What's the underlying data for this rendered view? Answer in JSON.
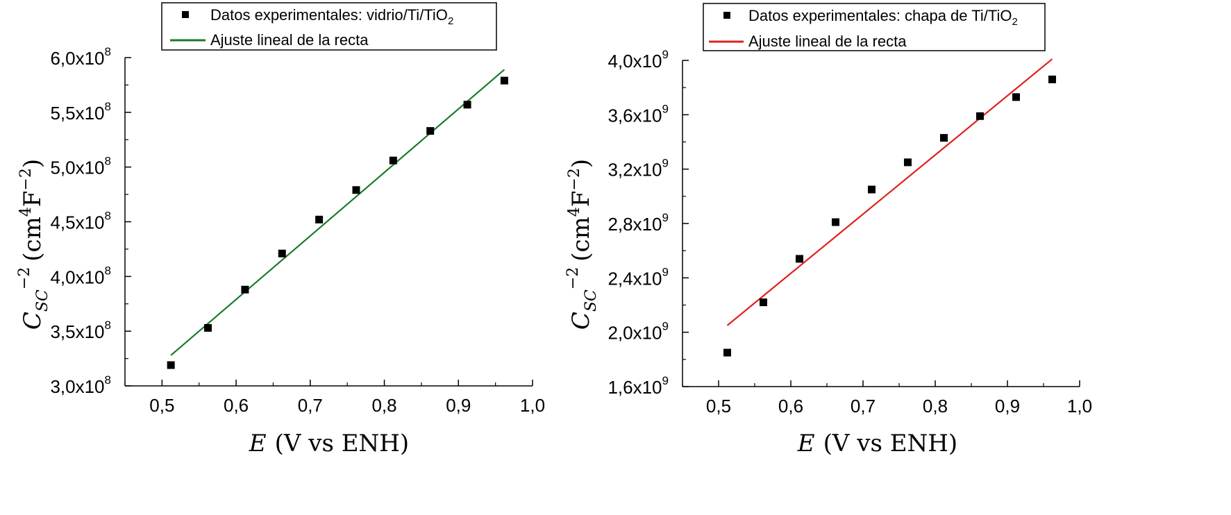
{
  "chart_data": [
    {
      "type": "scatter",
      "title": "",
      "xlabel": "E (V vs ENH)",
      "ylabel": "C_SC^−2 (cm^4F^−2)",
      "xlim": [
        0.45,
        1.0
      ],
      "ylim": [
        300000000,
        600000000
      ],
      "x_ticks": [
        0.5,
        0.6,
        0.7,
        0.8,
        0.9,
        1.0
      ],
      "x_tick_labels": [
        "0,5",
        "0,6",
        "0,7",
        "0,8",
        "0,9",
        "1,0"
      ],
      "y_ticks": [
        300000000,
        350000000,
        400000000,
        450000000,
        500000000,
        550000000,
        600000000
      ],
      "y_tick_labels": [
        {
          "mantissa": "3,0x10",
          "exp": "8"
        },
        {
          "mantissa": "3,5x10",
          "exp": "8"
        },
        {
          "mantissa": "4,0x10",
          "exp": "8"
        },
        {
          "mantissa": "4,5x10",
          "exp": "8"
        },
        {
          "mantissa": "5,0x10",
          "exp": "8"
        },
        {
          "mantissa": "5,5x10",
          "exp": "8"
        },
        {
          "mantissa": "6,0x10",
          "exp": "8"
        }
      ],
      "fit_color": "#1a7a2e",
      "legend_position": "top-center",
      "series": [
        {
          "name": "Datos experimentales: vidrio/Ti/TiO2",
          "kind": "scatter",
          "x": [
            0.512,
            0.562,
            0.612,
            0.662,
            0.712,
            0.762,
            0.812,
            0.862,
            0.912,
            0.962
          ],
          "y": [
            319000000,
            353000000,
            388000000,
            421000000,
            452000000,
            479000000,
            506000000,
            533000000,
            557000000,
            579000000
          ]
        },
        {
          "name": "Ajuste lineal de la recta",
          "kind": "line",
          "x": [
            0.512,
            0.962
          ],
          "y": [
            328000000,
            589000000
          ]
        }
      ]
    },
    {
      "type": "scatter",
      "title": "",
      "xlabel": "E (V vs ENH)",
      "ylabel": "C_SC^−2 (cm^4F^−2)",
      "xlim": [
        0.45,
        1.0
      ],
      "ylim": [
        1600000000,
        4000000000
      ],
      "x_ticks": [
        0.5,
        0.6,
        0.7,
        0.8,
        0.9,
        1.0
      ],
      "x_tick_labels": [
        "0,5",
        "0,6",
        "0,7",
        "0,8",
        "0,9",
        "1,0"
      ],
      "y_ticks": [
        1600000000,
        2000000000,
        2400000000,
        2800000000,
        3200000000,
        3600000000,
        4000000000
      ],
      "y_tick_labels": [
        {
          "mantissa": "1,6x10",
          "exp": "9"
        },
        {
          "mantissa": "2,0x10",
          "exp": "9"
        },
        {
          "mantissa": "2,4x10",
          "exp": "9"
        },
        {
          "mantissa": "2,8x10",
          "exp": "9"
        },
        {
          "mantissa": "3,2x10",
          "exp": "9"
        },
        {
          "mantissa": "3,6x10",
          "exp": "9"
        },
        {
          "mantissa": "4,0x10",
          "exp": "9"
        }
      ],
      "fit_color": "#e0201b",
      "legend_position": "top-center",
      "series": [
        {
          "name": "Datos experimentales: chapa de Ti/TiO2",
          "kind": "scatter",
          "x": [
            0.512,
            0.562,
            0.612,
            0.662,
            0.712,
            0.762,
            0.812,
            0.862,
            0.912,
            0.962
          ],
          "y": [
            1850000000,
            2220000000,
            2540000000,
            2810000000,
            3050000000,
            3250000000,
            3430000000,
            3590000000,
            3730000000,
            3860000000
          ]
        },
        {
          "name": "Ajuste lineal de la recta",
          "kind": "line",
          "x": [
            0.512,
            0.962
          ],
          "y": [
            2050000000,
            4010000000
          ]
        }
      ]
    }
  ],
  "legends": [
    {
      "scatter_label": {
        "main": "Datos experimentales: vidrio/Ti/TiO",
        "sub": "2"
      },
      "line_label": "Ajuste lineal de la recta"
    },
    {
      "scatter_label": {
        "main": "Datos experimentales: chapa de Ti/TiO",
        "sub": "2"
      },
      "line_label": "Ajuste lineal de la recta"
    }
  ],
  "axis_titles": {
    "x": {
      "var": "E",
      "rest": "(V vs ENH)"
    },
    "y": {
      "var": "C",
      "sub": "SC",
      "sup": "−2",
      "open": "(cm",
      "unit_sup": "4",
      "unit_mid": "F",
      "unit_sup2": "−2",
      "close": ")"
    }
  }
}
